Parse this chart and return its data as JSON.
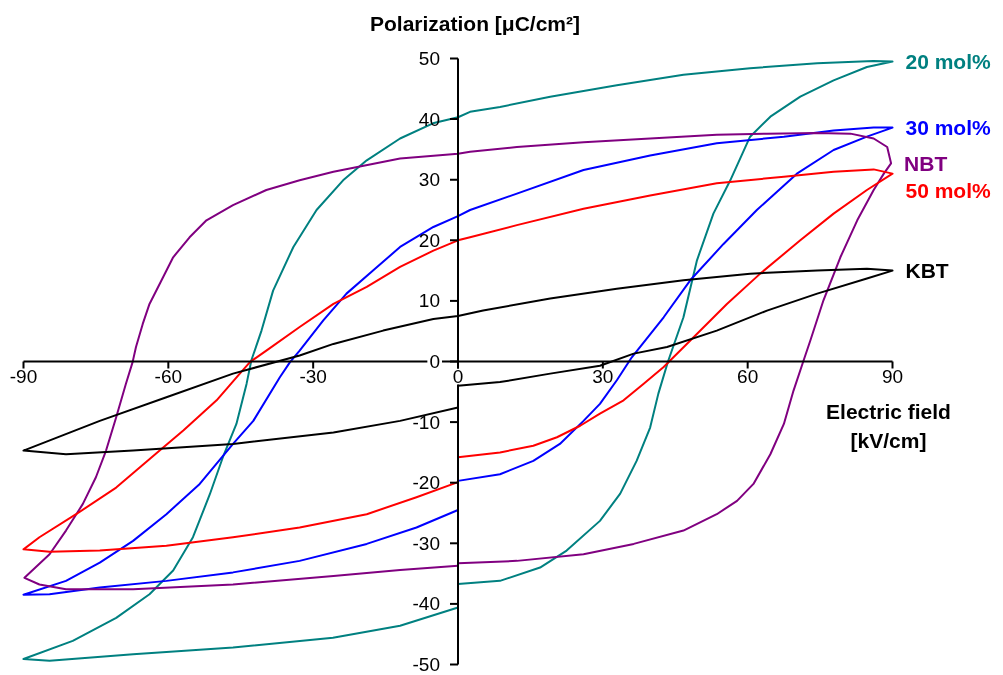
{
  "chart_data": {
    "type": "line",
    "xlabel": "Electric field\n[kV/cm]",
    "ylabel": "Polarization [μC/cm²]",
    "xlim": [
      -90,
      90
    ],
    "ylim": [
      -50,
      50
    ],
    "xticks": [
      -90,
      -60,
      -30,
      0,
      30,
      60,
      90
    ],
    "yticks": [
      -50,
      -40,
      -30,
      -20,
      -10,
      0,
      10,
      20,
      30,
      40,
      50
    ],
    "series": [
      {
        "name": "20 mol%",
        "color": "#008080",
        "x": [
          0,
          8.7,
          17,
          22.5,
          29.4,
          33.6,
          37,
          39.8,
          41.5,
          43.5,
          46.7,
          49.5,
          52.9,
          56.4,
          60.5,
          64.7,
          70.9,
          77.8,
          84.7,
          90,
          86,
          74.4,
          60.5,
          46.7,
          32.9,
          19.1,
          8.7,
          2.5,
          0,
          -5.2,
          -12,
          -18.9,
          -23.8,
          -29.3,
          -34.1,
          -38.3,
          -40.7,
          -42.8,
          -43.8,
          -45.9,
          -48.7,
          -51.4,
          -54.9,
          -59,
          -63.9,
          -70.8,
          -79.8,
          -90,
          -84.6,
          -67.3,
          -46.6,
          -25.9,
          -12,
          0
        ],
        "values": [
          -36.7,
          -36.2,
          -34,
          -31.2,
          -26.3,
          -21.8,
          -16.4,
          -10.9,
          -5.3,
          0,
          7.3,
          16.7,
          24.4,
          29.9,
          37.1,
          40.4,
          43.7,
          46.4,
          48.6,
          49.5,
          49.6,
          49.2,
          48.4,
          47.3,
          45.6,
          43.7,
          42,
          41.2,
          40.3,
          39.3,
          36.8,
          33.2,
          29.9,
          25,
          18.9,
          11.7,
          5.1,
          0.2,
          -3.7,
          -10.3,
          -15.8,
          -21.9,
          -29,
          -34.5,
          -38.4,
          -42.3,
          -46.1,
          -49.1,
          -49.4,
          -48.3,
          -47.2,
          -45.6,
          -43.6,
          -40.6
        ]
      },
      {
        "name": "30 mol%",
        "color": "#0000ff",
        "x": [
          0,
          8.7,
          15.6,
          21.1,
          26,
          29.4,
          32.9,
          36,
          42.6,
          48.1,
          55,
          61.9,
          70.2,
          77.8,
          84.7,
          90,
          86.1,
          77.8,
          67.5,
          53.6,
          39.8,
          26,
          12.2,
          2.5,
          0,
          -5.1,
          -12,
          -17.6,
          -23.1,
          -27.9,
          -32.8,
          -34.8,
          -36.9,
          -42.4,
          -46.6,
          -53.5,
          -60.4,
          -67.3,
          -74.2,
          -81.2,
          -90,
          -84.6,
          -74.2,
          -60.4,
          -46.6,
          -32.8,
          -18.9,
          -8.6,
          0
        ],
        "values": [
          -19.7,
          -18.6,
          -16.4,
          -13.6,
          -9.8,
          -7,
          -3.1,
          0.7,
          7.3,
          13.4,
          19.4,
          25,
          31,
          34.9,
          37.1,
          38.6,
          38.6,
          38.1,
          37.1,
          36,
          34,
          31.6,
          27.7,
          25,
          24,
          22.2,
          18.9,
          15,
          11.2,
          6.8,
          1.8,
          -0.1,
          -2.6,
          -9.8,
          -13.6,
          -20.2,
          -25.2,
          -29.6,
          -33.2,
          -36.2,
          -38.5,
          -38.4,
          -37.3,
          -36.2,
          -34.8,
          -32.9,
          -30.1,
          -27.4,
          -24.5
        ]
      },
      {
        "name": "NBT",
        "color": "#800080",
        "x": [
          0,
          12.2,
          26,
          36.4,
          46.7,
          53.6,
          57.8,
          61.2,
          64.7,
          67.5,
          69.5,
          71.6,
          73,
          75.7,
          79.2,
          82.7,
          86.1,
          88.2,
          89.7,
          88.9,
          86.1,
          81.3,
          74.4,
          64,
          53.6,
          39.8,
          26,
          12.2,
          2.5,
          0,
          -12,
          -25.8,
          -32.8,
          -39.7,
          -46.6,
          -52.1,
          -55.6,
          -59,
          -61.8,
          -63.9,
          -65.3,
          -66.7,
          -67.4,
          -68.8,
          -70.8,
          -72.9,
          -75,
          -77.7,
          -81.2,
          -84.6,
          -89.8,
          -86.7,
          -81.2,
          -67.3,
          -46.6,
          -25.8,
          -12,
          0
        ],
        "values": [
          -33.3,
          -32.9,
          -31.8,
          -30.1,
          -27.9,
          -25.2,
          -23,
          -20.2,
          -15.3,
          -10.3,
          -4.8,
          0.2,
          3.5,
          10.1,
          17.2,
          23.3,
          28.3,
          31,
          32.7,
          35.4,
          36.8,
          37.6,
          37.7,
          37.6,
          37.4,
          36.8,
          36.2,
          35.4,
          34.6,
          34.3,
          33.5,
          31.3,
          29.9,
          28.3,
          25.8,
          23.3,
          20.5,
          17.2,
          12.8,
          9.5,
          6.2,
          2.4,
          -0.1,
          -3.7,
          -9.2,
          -14.7,
          -19.1,
          -23.5,
          -27.9,
          -31.8,
          -35.7,
          -36.8,
          -37.6,
          -37.6,
          -36.8,
          -35.4,
          -34.4,
          -33.7
        ]
      },
      {
        "name": "50 mol%",
        "color": "#ff0000",
        "x": [
          0,
          8.7,
          15.6,
          20.5,
          25.3,
          29.4,
          34.3,
          38.4,
          42.6,
          44,
          48.8,
          55.7,
          62.6,
          70.9,
          77.8,
          84.7,
          90,
          86.1,
          77.8,
          67.5,
          53.6,
          39.8,
          26,
          12.2,
          2.5,
          0,
          -5.1,
          -12,
          -18.9,
          -25.8,
          -32.8,
          -39.7,
          -43.1,
          -45.2,
          -50,
          -56.9,
          -61.8,
          -70.8,
          -79.1,
          -86.7,
          -90,
          -84.6,
          -74.2,
          -60.4,
          -46.6,
          -32.8,
          -18.9,
          -8.6,
          0
        ],
        "values": [
          -15.8,
          -15,
          -13.9,
          -12.5,
          -10.6,
          -8.6,
          -6.4,
          -3.7,
          -0.9,
          0.2,
          4,
          9.5,
          14.5,
          20,
          24.4,
          28.3,
          31,
          31.7,
          31.3,
          30.5,
          29.4,
          27.4,
          25.2,
          22.5,
          20.5,
          20,
          18.3,
          15.6,
          12.3,
          9.5,
          5.7,
          1.8,
          -0.1,
          -2,
          -6.4,
          -11.4,
          -14.7,
          -20.8,
          -25.2,
          -29,
          -31,
          -31.4,
          -31.2,
          -30.4,
          -29,
          -27.4,
          -25.2,
          -22.4,
          -19.9
        ]
      },
      {
        "name": "KBT",
        "color": "#000000",
        "x": [
          0,
          8.7,
          19.1,
          29.4,
          36.4,
          43.3,
          53.6,
          64,
          74.4,
          84.7,
          90,
          84.7,
          74.4,
          60.5,
          46.7,
          32.9,
          19.1,
          5.2,
          0,
          -5.1,
          -15.5,
          -25.8,
          -32.8,
          -46.6,
          -60.4,
          -74.2,
          -90,
          -81.2,
          -67.3,
          -46.6,
          -25.8,
          -12,
          0
        ],
        "values": [
          -4,
          -3.4,
          -2,
          -0.7,
          1.3,
          2.4,
          5.1,
          8.4,
          11.2,
          13.7,
          15,
          15.3,
          15,
          14.5,
          13.4,
          12,
          10.4,
          8.4,
          7.5,
          7,
          5.1,
          2.9,
          1,
          -2,
          -5.9,
          -9.8,
          -14.7,
          -15.3,
          -14.7,
          -13.6,
          -11.7,
          -9.8,
          -7.6
        ]
      }
    ]
  }
}
